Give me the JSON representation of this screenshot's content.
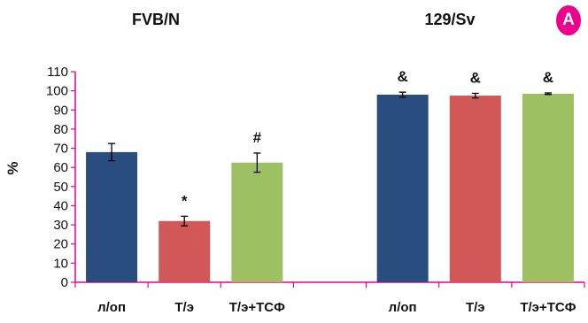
{
  "panel_label": "A",
  "chart_data": {
    "type": "bar",
    "ylabel": "%",
    "ylim": [
      0,
      110
    ],
    "yticks": [
      0,
      10,
      20,
      30,
      40,
      50,
      60,
      70,
      80,
      90,
      100,
      110
    ],
    "groups": [
      {
        "title": "FVB/N",
        "bars": [
          {
            "category": "л/оп",
            "value": 68,
            "error": 4.5,
            "annotation": "",
            "color": "#2a4d80"
          },
          {
            "category": "Т/э",
            "value": 32,
            "error": 2.5,
            "annotation": "*",
            "color": "#d05858"
          },
          {
            "category": "Т/э+ТСФ",
            "value": 62.5,
            "error": 5,
            "annotation": "#",
            "color": "#9dc062"
          }
        ]
      },
      {
        "title": "129/Sv",
        "bars": [
          {
            "category": "л/оп",
            "value": 98,
            "error": 1.3,
            "annotation": "&",
            "color": "#2a4d80"
          },
          {
            "category": "Т/э",
            "value": 97.5,
            "error": 1.2,
            "annotation": "&",
            "color": "#d05858"
          },
          {
            "category": "Т/э+ТСФ",
            "value": 98.5,
            "error": 0.4,
            "annotation": "&",
            "color": "#9dc062"
          }
        ]
      }
    ],
    "axis_color": "#ec008c"
  }
}
